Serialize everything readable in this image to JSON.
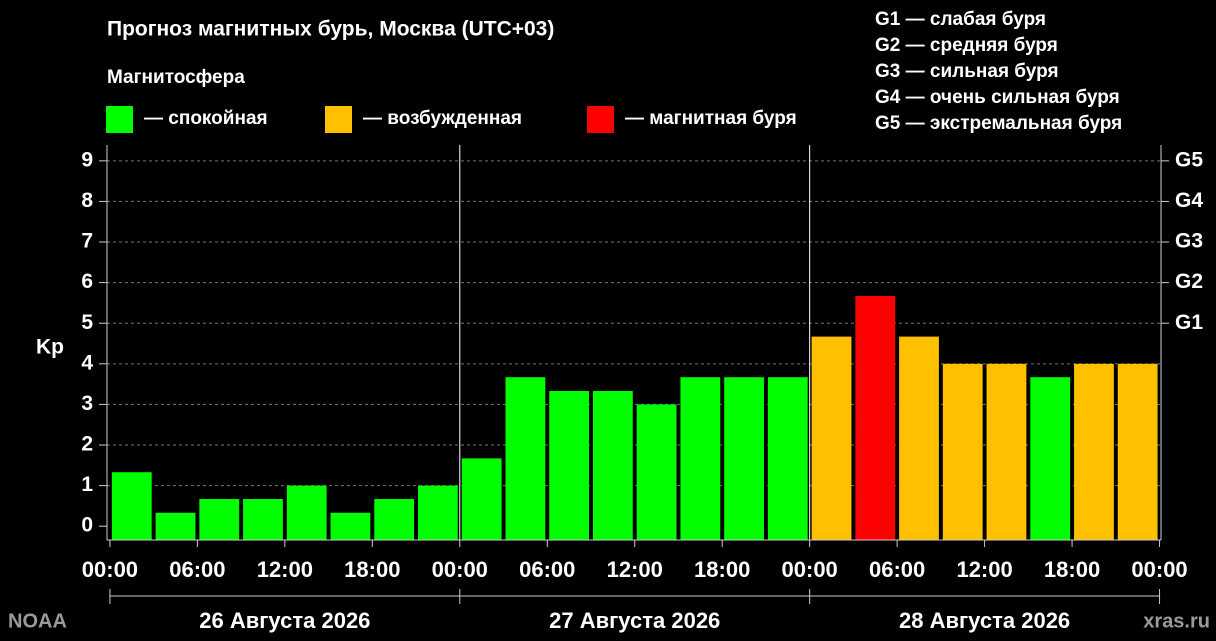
{
  "chart_data": {
    "type": "bar",
    "title": "Прогноз магнитных бурь, Москва (UTC+03)",
    "legend_title": "Магнитосфера",
    "legend": [
      {
        "label": "— спокойная",
        "color": "#00ff00"
      },
      {
        "label": "— возбужденная",
        "color": "#ffc000"
      },
      {
        "label": "— магнитная буря",
        "color": "#ff0000"
      }
    ],
    "storm_scale": [
      "G1 — слабая буря",
      "G2 — средняя буря",
      "G3 — сильная буря",
      "G4 — очень сильная буря",
      "G5 — экстремальная буря"
    ],
    "ylabel": "Kp",
    "x": [
      1.5,
      4.5,
      7.5,
      10.5,
      13.5,
      16.5,
      19.5,
      22.5,
      25.5,
      28.5,
      31.5,
      34.5,
      37.5,
      40.5,
      43.5,
      46.5,
      49.5,
      52.5,
      55.5,
      58.5,
      61.5,
      64.5,
      67.5,
      70.5
    ],
    "values": [
      1.33,
      0.33,
      0.67,
      0.67,
      1.0,
      0.33,
      0.67,
      1.0,
      1.67,
      3.67,
      3.33,
      3.33,
      3.0,
      3.67,
      3.67,
      3.67,
      4.67,
      5.67,
      4.67,
      4.0,
      4.0,
      3.67,
      4.0,
      4.0
    ],
    "colors": [
      "#00ff00",
      "#00ff00",
      "#00ff00",
      "#00ff00",
      "#00ff00",
      "#00ff00",
      "#00ff00",
      "#00ff00",
      "#00ff00",
      "#00ff00",
      "#00ff00",
      "#00ff00",
      "#00ff00",
      "#00ff00",
      "#00ff00",
      "#00ff00",
      "#ffc000",
      "#ff0000",
      "#ffc000",
      "#ffc000",
      "#ffc000",
      "#00ff00",
      "#ffc000",
      "#ffc000"
    ],
    "xlim": [
      -0.2,
      72.1
    ],
    "xticks": [
      {
        "value": 0,
        "label": "00:00"
      },
      {
        "value": 6,
        "label": "06:00"
      },
      {
        "value": 12,
        "label": "12:00"
      },
      {
        "value": 18,
        "label": "18:00"
      },
      {
        "value": 24,
        "label": "00:00"
      },
      {
        "value": 30,
        "label": "06:00"
      },
      {
        "value": 36,
        "label": "12:00"
      },
      {
        "value": 42,
        "label": "18:00"
      },
      {
        "value": 48,
        "label": "00:00"
      },
      {
        "value": 54,
        "label": "06:00"
      },
      {
        "value": 60,
        "label": "12:00"
      },
      {
        "value": 66,
        "label": "18:00"
      },
      {
        "value": 72,
        "label": "00:00"
      }
    ],
    "ylim": [
      -0.34,
      9.39
    ],
    "yticks": [
      0,
      1,
      2,
      3,
      4,
      5,
      6,
      7,
      8,
      9
    ],
    "y2lim": [
      -0.34,
      9.39
    ],
    "y2ticks": [
      {
        "value": 5,
        "label": "G1"
      },
      {
        "value": 6,
        "label": "G2"
      },
      {
        "value": 7,
        "label": "G3"
      },
      {
        "value": 8,
        "label": "G4"
      },
      {
        "value": 9,
        "label": "G5"
      }
    ],
    "days": [
      "26 Августа 2026",
      "27 Августа 2026",
      "28 Августа 2026"
    ],
    "day_bounds": [
      0,
      24,
      48,
      72
    ],
    "source": "NOAA",
    "credit": "xras.ru",
    "grid": true
  }
}
